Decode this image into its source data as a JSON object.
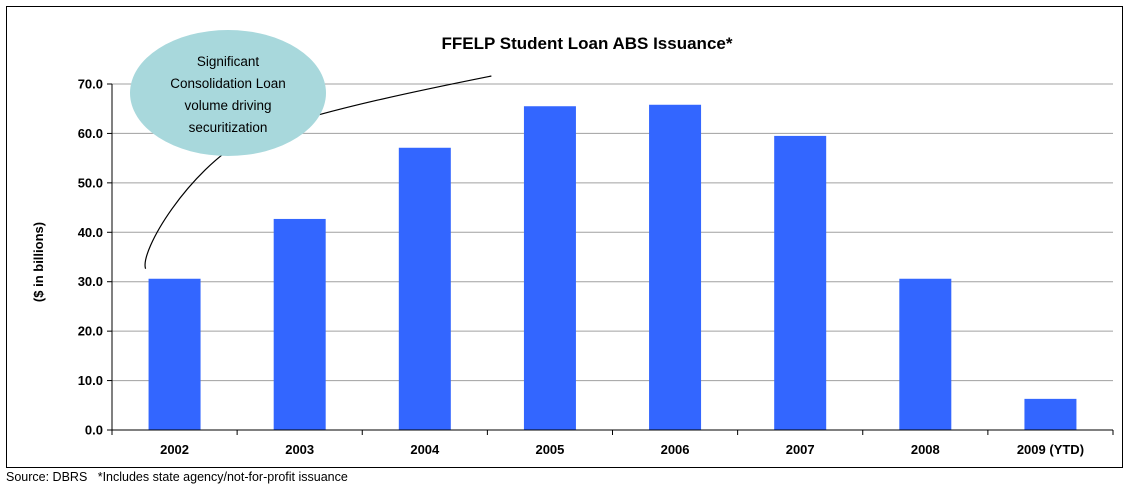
{
  "chart_data": {
    "type": "bar",
    "title": "FFELP Student Loan ABS Issuance*",
    "xlabel": "",
    "ylabel": "($ in billions)",
    "categories": [
      "2002",
      "2003",
      "2004",
      "2005",
      "2006",
      "2007",
      "2008",
      "2009 (YTD)"
    ],
    "values": [
      30.6,
      42.7,
      57.1,
      65.5,
      65.8,
      59.5,
      30.6,
      6.3
    ],
    "ylim": [
      0,
      70
    ],
    "yticks": [
      "0.0",
      "10.0",
      "20.0",
      "30.0",
      "40.0",
      "50.0",
      "60.0",
      "70.0"
    ],
    "grid": true,
    "bar_color": "#3366ff",
    "annotation": {
      "lines": [
        "Significant",
        "Consolidation Loan",
        "volume driving",
        "securitization"
      ],
      "bubble_color": "#a8d8dc",
      "brace_span": [
        "2002",
        "2005"
      ]
    }
  },
  "footer": {
    "source": "Source: DBRS   *Includes state agency/not-for-profit issuance"
  }
}
